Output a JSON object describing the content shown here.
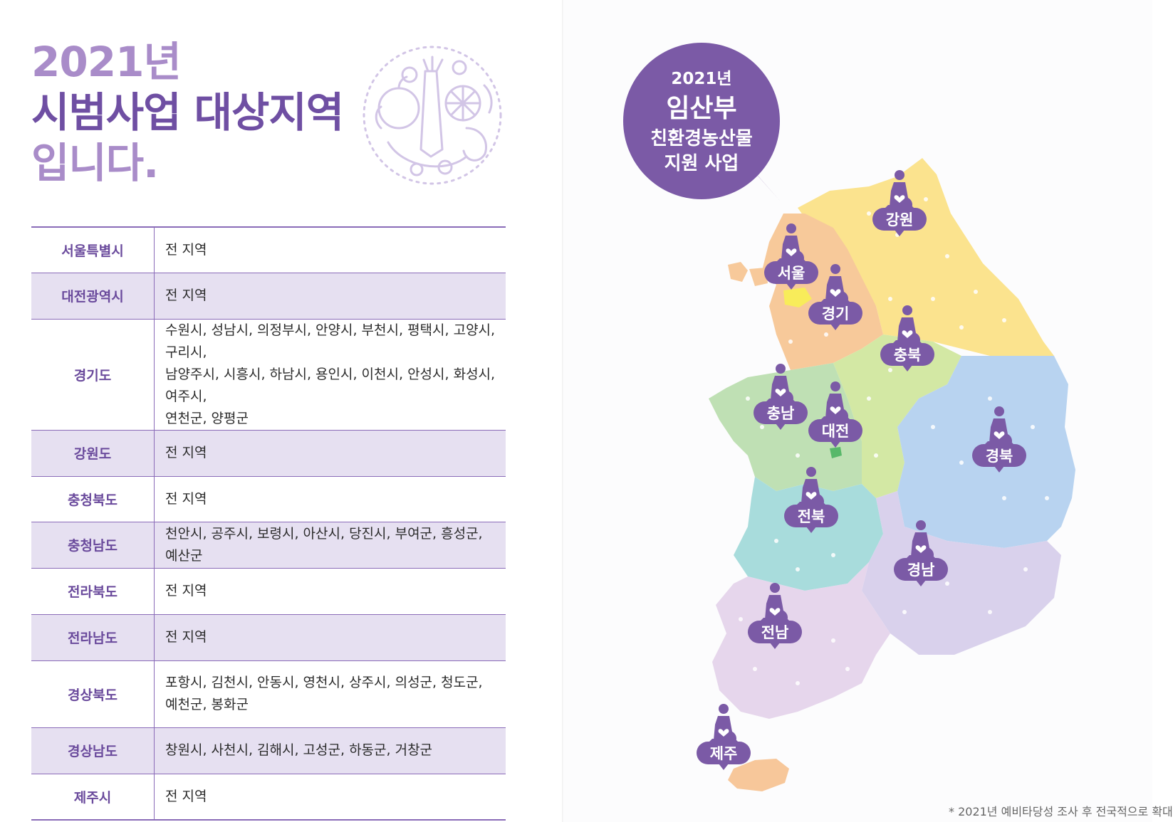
{
  "title": {
    "year": "2021년",
    "line2": "시범사업 대상지역",
    "line3": "입니다."
  },
  "emblem": {
    "icon": "vegetables-emblem-icon"
  },
  "table": {
    "rows": [
      {
        "region": "서울특별시",
        "areas": [
          "전 지역"
        ],
        "shaded": false
      },
      {
        "region": "대전광역시",
        "areas": [
          "전 지역"
        ],
        "shaded": true
      },
      {
        "region": "경기도",
        "areas": [
          "수원시, 성남시, 의정부시, 안양시, 부천시, 평택시, 고양시, 구리시,",
          "남양주시, 시흥시, 하남시, 용인시, 이천시, 안성시, 화성시, 여주시,",
          "연천군, 양평군"
        ],
        "shaded": false
      },
      {
        "region": "강원도",
        "areas": [
          "전 지역"
        ],
        "shaded": true
      },
      {
        "region": "충청북도",
        "areas": [
          "전 지역"
        ],
        "shaded": false
      },
      {
        "region": "충청남도",
        "areas": [
          "천안시, 공주시, 보령시, 아산시, 당진시, 부여군, 흥성군, 예산군"
        ],
        "shaded": true
      },
      {
        "region": "전라북도",
        "areas": [
          "전 지역"
        ],
        "shaded": false
      },
      {
        "region": "전라남도",
        "areas": [
          "전 지역"
        ],
        "shaded": true
      },
      {
        "region": "경상북도",
        "areas": [
          "포항시, 김천시, 안동시, 영천시, 상주시, 의성군, 청도군,",
          "예천군, 봉화군"
        ],
        "shaded": false
      },
      {
        "region": "경상남도",
        "areas": [
          "창원시, 사천시, 김해시, 고성군, 하동군, 거창군"
        ],
        "shaded": true
      },
      {
        "region": "제주시",
        "areas": [
          "전 지역"
        ],
        "shaded": false
      }
    ]
  },
  "bubble": {
    "year": "2021년",
    "line1": "임산부",
    "line2": "친환경농산물",
    "line3": "지원 사업"
  },
  "map": {
    "marker_icon": "pregnant-woman-icon",
    "accent": "#7b5aa6",
    "markers": [
      {
        "label": "강원"
      },
      {
        "label": "서울"
      },
      {
        "label": "경기"
      },
      {
        "label": "충북"
      },
      {
        "label": "충남"
      },
      {
        "label": "대전"
      },
      {
        "label": "경북"
      },
      {
        "label": "전북"
      },
      {
        "label": "경남"
      },
      {
        "label": "전남"
      },
      {
        "label": "제주"
      }
    ],
    "colors": {
      "gangwon": "#fbe38e",
      "gyeonggi": "#f7c99a",
      "seoul": "#f8ec5a",
      "chungbuk": "#d3e8a4",
      "chungnam": "#bfe0b4",
      "gyeongbuk": "#b8d3f0",
      "jeonbuk": "#a8dcdc",
      "gyeongnam": "#d9d1ec",
      "jeonnam": "#e6d6ec",
      "jeju": "#f7c79a"
    }
  },
  "footnote": "* 2021년 예비타당성 조사 후 전국적으로 확대"
}
